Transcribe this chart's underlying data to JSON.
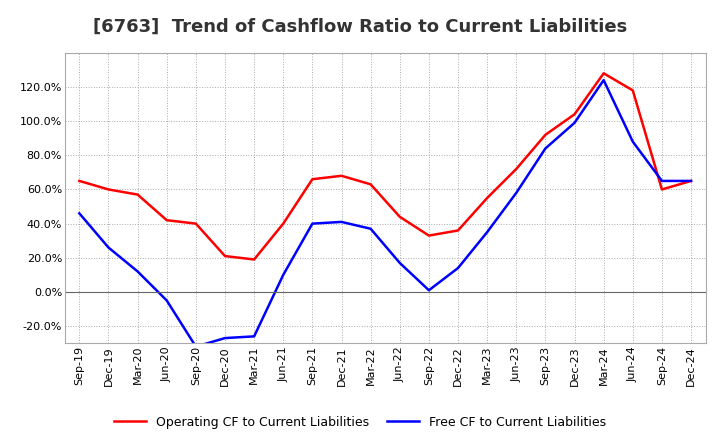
{
  "title": "[6763]  Trend of Cashflow Ratio to Current Liabilities",
  "x_labels": [
    "Sep-19",
    "Dec-19",
    "Mar-20",
    "Jun-20",
    "Sep-20",
    "Dec-20",
    "Mar-21",
    "Jun-21",
    "Sep-21",
    "Dec-21",
    "Mar-22",
    "Jun-22",
    "Sep-22",
    "Dec-22",
    "Mar-23",
    "Jun-23",
    "Sep-23",
    "Dec-23",
    "Mar-24",
    "Jun-24",
    "Sep-24",
    "Dec-24"
  ],
  "operating_cf": [
    0.65,
    0.6,
    0.57,
    0.42,
    0.4,
    0.21,
    0.19,
    0.4,
    0.66,
    0.68,
    0.63,
    0.44,
    0.33,
    0.36,
    0.55,
    0.72,
    0.92,
    1.04,
    1.28,
    1.18,
    0.6,
    0.65
  ],
  "free_cf": [
    0.46,
    0.26,
    0.12,
    -0.05,
    -0.32,
    -0.27,
    -0.26,
    0.1,
    0.4,
    0.41,
    0.37,
    0.17,
    0.01,
    0.14,
    0.35,
    0.58,
    0.84,
    0.99,
    1.24,
    0.88,
    0.65,
    0.65
  ],
  "operating_color": "#FF0000",
  "free_color": "#0000FF",
  "ylim": [
    -0.3,
    1.4
  ],
  "yticks": [
    -0.2,
    0.0,
    0.2,
    0.4,
    0.6,
    0.8,
    1.0,
    1.2
  ],
  "background_color": "#FFFFFF",
  "grid_color": "#AAAAAA",
  "legend_op": "Operating CF to Current Liabilities",
  "legend_free": "Free CF to Current Liabilities",
  "title_fontsize": 13,
  "tick_fontsize": 8,
  "legend_fontsize": 9
}
